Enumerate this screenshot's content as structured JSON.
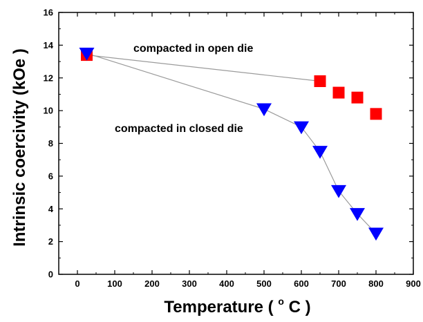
{
  "chart_data": {
    "type": "scatter",
    "xlabel": "Temperature ( °C )",
    "xlabel_main": "Temperature (",
    "xlabel_unit_deg": "o",
    "xlabel_unit": "C )",
    "ylabel": "Intrinsic coercivity (kOe )",
    "xlim": [
      -50,
      900
    ],
    "ylim": [
      0,
      16
    ],
    "x_ticks": [
      0,
      100,
      200,
      300,
      400,
      500,
      600,
      700,
      800,
      900
    ],
    "y_ticks": [
      0,
      2,
      4,
      6,
      8,
      10,
      12,
      14,
      16
    ],
    "grid": false,
    "series": [
      {
        "key": "open",
        "marker": "square",
        "color": "#ff0000",
        "x": [
          25,
          650,
          700,
          750,
          800
        ],
        "y": [
          13.4,
          11.8,
          11.1,
          10.8,
          9.8
        ],
        "connect": [
          [
            25,
            13.4
          ],
          [
            650,
            11.8
          ]
        ]
      },
      {
        "key": "closed",
        "marker": "triangle-down",
        "color": "#0000ff",
        "x": [
          25,
          500,
          600,
          650,
          700,
          750,
          800
        ],
        "y": [
          13.5,
          10.1,
          9.0,
          7.5,
          5.1,
          3.7,
          2.5
        ],
        "connect": [
          [
            25,
            13.5
          ],
          [
            500,
            10.1
          ],
          [
            600,
            9.0
          ],
          [
            650,
            7.5
          ],
          [
            700,
            5.1
          ],
          [
            750,
            3.7
          ],
          [
            800,
            2.5
          ]
        ]
      }
    ],
    "annotations": [
      {
        "text": "compacted in open die",
        "x": 150,
        "y": 13.6
      },
      {
        "text": "compacted in closed die",
        "x": 100,
        "y": 8.7
      }
    ]
  }
}
